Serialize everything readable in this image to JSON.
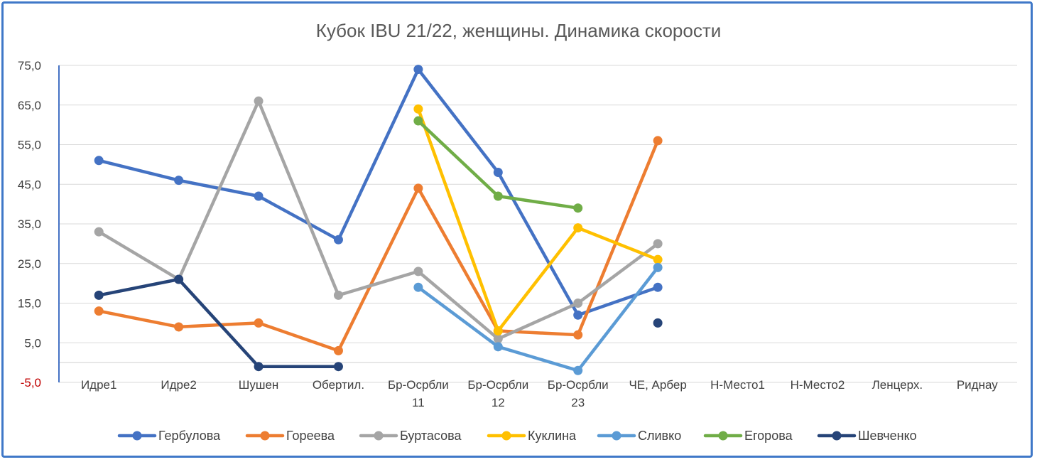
{
  "chart_data": {
    "type": "line",
    "title": "Кубок IBU 21/22, женщины. Динамика скорости",
    "xlabel": "",
    "ylabel": "",
    "ylim": [
      -5,
      75
    ],
    "yticks": [
      "75,0",
      "65,0",
      "55,0",
      "45,0",
      "35,0",
      "25,0",
      "15,0",
      "5,0",
      "-5,0"
    ],
    "ytick_values": [
      75,
      65,
      55,
      45,
      35,
      25,
      15,
      5,
      -5
    ],
    "grid": true,
    "legend_position": "bottom",
    "categories": [
      [
        "Идре1"
      ],
      [
        "Идре2"
      ],
      [
        "Шушен"
      ],
      [
        "Обертил."
      ],
      [
        "Бр-Осрбли",
        "11"
      ],
      [
        "Бр-Осрбли",
        "12"
      ],
      [
        "Бр-Осрбли",
        "23"
      ],
      [
        "ЧЕ, Арбер"
      ],
      [
        "Н-Место1"
      ],
      [
        "Н-Место2"
      ],
      [
        "Ленцерх."
      ],
      [
        "Риднау"
      ]
    ],
    "series": [
      {
        "name": "Гербулова",
        "color": "#4472c4",
        "values": [
          51,
          46,
          42,
          31,
          74,
          48,
          12,
          19,
          null,
          null,
          null,
          null
        ]
      },
      {
        "name": "Гореева",
        "color": "#ed7d31",
        "values": [
          13,
          9,
          10,
          3,
          44,
          8,
          7,
          56,
          null,
          null,
          null,
          null
        ]
      },
      {
        "name": "Буртасова",
        "color": "#a5a5a5",
        "values": [
          33,
          21,
          66,
          17,
          23,
          6,
          15,
          30,
          null,
          null,
          null,
          null
        ]
      },
      {
        "name": "Куклина",
        "color": "#ffc000",
        "values": [
          null,
          null,
          null,
          null,
          64,
          8,
          34,
          26,
          null,
          null,
          null,
          null
        ]
      },
      {
        "name": "Сливко",
        "color": "#5b9bd5",
        "values": [
          null,
          null,
          null,
          null,
          19,
          4,
          -2,
          24,
          null,
          null,
          null,
          null
        ]
      },
      {
        "name": "Егорова",
        "color": "#70ad47",
        "values": [
          null,
          null,
          null,
          null,
          61,
          42,
          39,
          null,
          null,
          null,
          null,
          null
        ]
      },
      {
        "name": "Шевченко",
        "color": "#264478",
        "values": [
          17,
          21,
          -1,
          -1,
          null,
          null,
          null,
          10,
          null,
          null,
          null,
          null
        ]
      }
    ]
  }
}
